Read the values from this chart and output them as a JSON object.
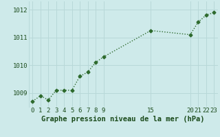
{
  "x": [
    0,
    1,
    2,
    3,
    4,
    5,
    6,
    7,
    8,
    9,
    15,
    20,
    21,
    22,
    23
  ],
  "y": [
    1008.7,
    1008.9,
    1008.75,
    1009.1,
    1009.1,
    1009.1,
    1009.6,
    1009.75,
    1010.1,
    1010.3,
    1011.25,
    1011.1,
    1011.55,
    1011.8,
    1011.9
  ],
  "xlim": [
    -0.5,
    23.5
  ],
  "ylim": [
    1008.5,
    1012.3
  ],
  "yticks": [
    1009,
    1010,
    1011,
    1012
  ],
  "xticks": [
    0,
    1,
    2,
    3,
    4,
    5,
    6,
    7,
    8,
    9,
    15,
    20,
    21,
    22,
    23
  ],
  "xtick_labels": [
    "0",
    "1",
    "2",
    "3",
    "4",
    "5",
    "6",
    "7",
    "8",
    "9",
    "15",
    "20",
    "21",
    "22",
    "23"
  ],
  "line_color": "#2d6a2d",
  "marker": "D",
  "marker_size": 2.5,
  "bg_color": "#ceeaea",
  "grid_color": "#b8d8d8",
  "title": "Graphe pression niveau de la mer (hPa)",
  "title_color": "#1a4a1a",
  "title_fontsize": 7.5,
  "tick_color": "#1a4a1a",
  "tick_fontsize": 6.5,
  "line_width": 1.0
}
